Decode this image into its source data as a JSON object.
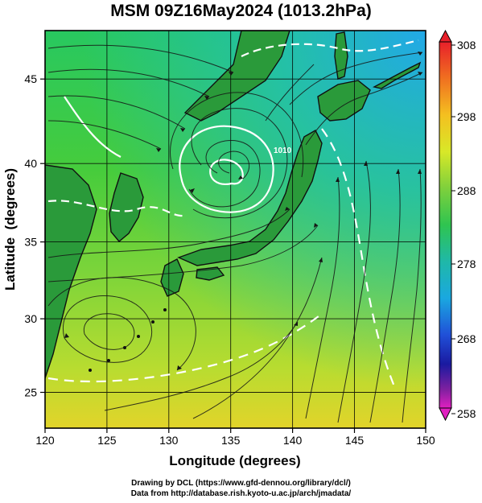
{
  "title": "MSM 09Z16May2024 (1013.2hPa)",
  "axes": {
    "xlabel": "Longitude (degrees)",
    "ylabel": "Latitude  (degrees)",
    "x_ticks": [
      "120",
      "125",
      "130",
      "135",
      "140",
      "145",
      "150"
    ],
    "y_ticks": [
      "25",
      "30",
      "35",
      "40",
      "45"
    ]
  },
  "colorbar": {
    "labels": [
      "308",
      "298",
      "288",
      "278",
      "268",
      "258"
    ],
    "colors": [
      "#e8202a",
      "#f07020",
      "#f4c020",
      "#d8e828",
      "#7ed03c",
      "#2fc450",
      "#1fb8a8",
      "#1aa8e0",
      "#2050d8",
      "#1a1aa0",
      "#8020a0",
      "#e020c0"
    ]
  },
  "map": {
    "grid": true,
    "contour_labels": [
      "1010"
    ],
    "extent": {
      "lon": [
        120,
        150
      ],
      "lat": [
        23,
        48
      ]
    }
  },
  "credits": {
    "line1": "Drawing by DCL (https://www.gfd-dennou.org/library/dcl/)",
    "line2": "Data from http://database.rish.kyoto-u.ac.jp/arch/jmadata/"
  }
}
